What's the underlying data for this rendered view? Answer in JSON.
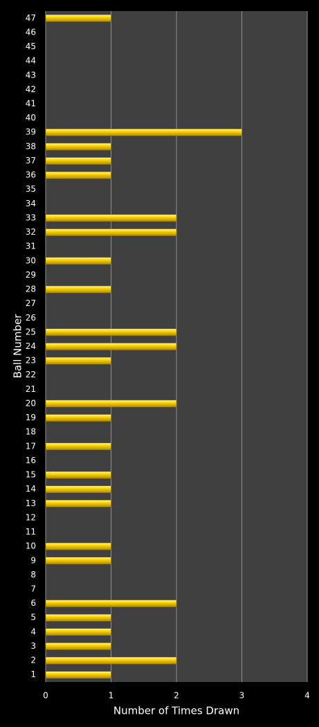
{
  "chart_data": {
    "type": "bar",
    "orientation": "horizontal",
    "x_label": "Number of Times Drawn",
    "y_label": "Ball Number",
    "categories": [
      "1",
      "2",
      "3",
      "4",
      "5",
      "6",
      "7",
      "8",
      "9",
      "10",
      "11",
      "12",
      "13",
      "14",
      "15",
      "16",
      "17",
      "18",
      "19",
      "20",
      "21",
      "22",
      "23",
      "24",
      "25",
      "26",
      "27",
      "28",
      "29",
      "30",
      "31",
      "32",
      "33",
      "34",
      "35",
      "36",
      "37",
      "38",
      "39",
      "40",
      "41",
      "42",
      "43",
      "44",
      "45",
      "46",
      "47"
    ],
    "values": [
      1,
      2,
      1,
      1,
      1,
      2,
      0,
      0,
      1,
      1,
      0,
      0,
      1,
      1,
      1,
      0,
      1,
      0,
      1,
      2,
      0,
      0,
      1,
      2,
      2,
      0,
      0,
      1,
      0,
      1,
      0,
      2,
      2,
      0,
      0,
      1,
      1,
      1,
      3,
      0,
      0,
      0,
      0,
      0,
      0,
      0,
      1
    ],
    "color": "#f5c400",
    "xlim": [
      0,
      4
    ],
    "xticks": [
      0,
      1,
      2,
      3,
      4
    ],
    "grid": true
  }
}
